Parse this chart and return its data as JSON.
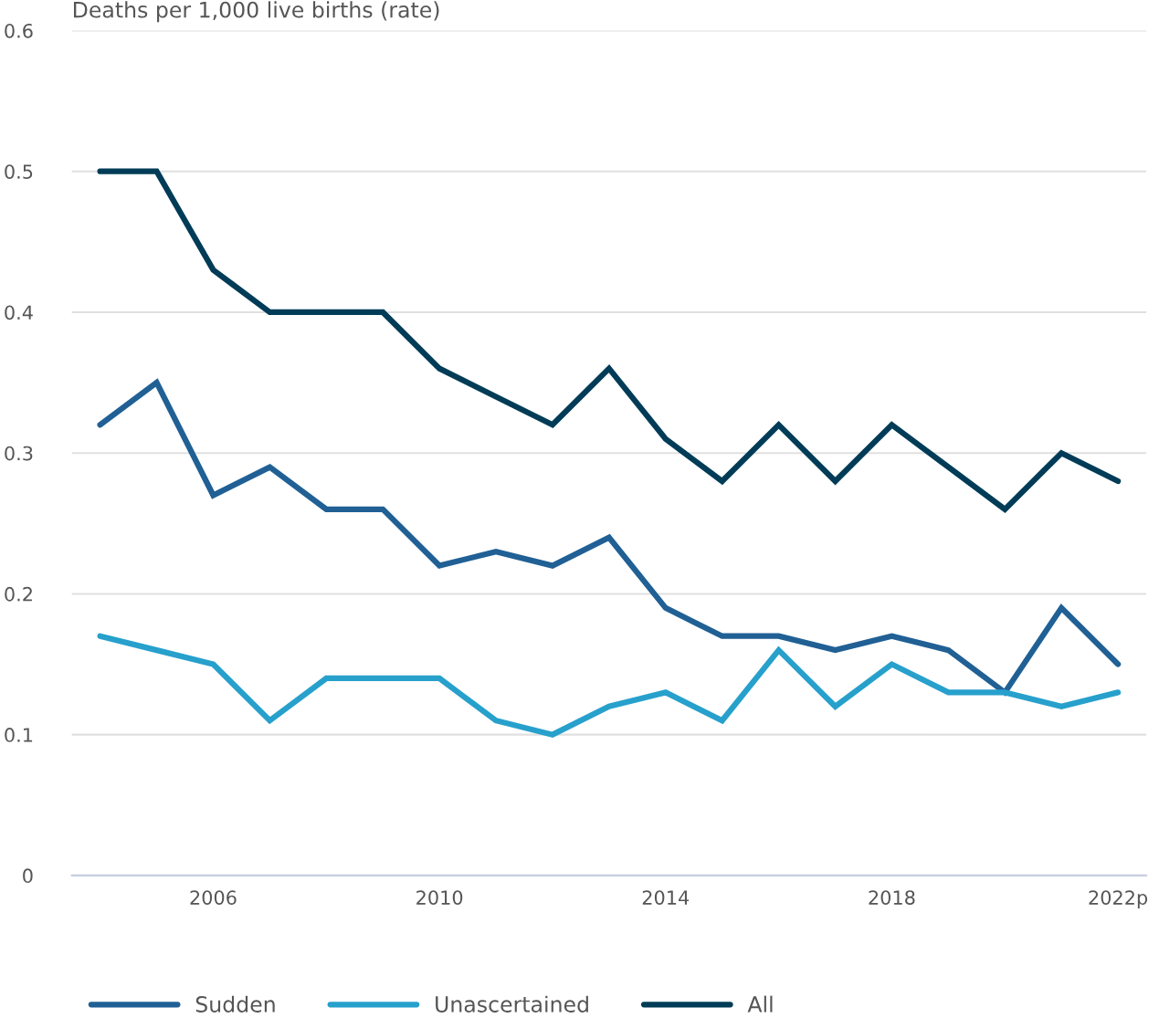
{
  "chart_data": {
    "type": "line",
    "ylabel": "Deaths per 1,000 live births (rate)",
    "categories": [
      null,
      null,
      "2006",
      null,
      null,
      null,
      "2010",
      null,
      null,
      null,
      "2014",
      null,
      null,
      null,
      "2018",
      null,
      null,
      null,
      "2022p"
    ],
    "series": [
      {
        "name": "Sudden",
        "color": "#206095",
        "values": [
          0.32,
          0.35,
          0.27,
          0.29,
          0.26,
          0.26,
          0.22,
          0.23,
          0.22,
          0.24,
          0.19,
          0.17,
          0.17,
          0.16,
          0.17,
          0.16,
          0.13,
          0.19,
          0.15
        ]
      },
      {
        "name": "Unascertained",
        "color": "#27a0cc",
        "values": [
          0.17,
          0.16,
          0.15,
          0.11,
          0.14,
          0.14,
          0.14,
          0.11,
          0.1,
          0.12,
          0.13,
          0.11,
          0.16,
          0.12,
          0.15,
          0.13,
          0.13,
          0.12,
          0.13
        ]
      },
      {
        "name": "All",
        "color": "#003c57",
        "values": [
          0.5,
          0.5,
          0.43,
          0.4,
          0.4,
          0.4,
          0.36,
          0.34,
          0.32,
          0.36,
          0.31,
          0.28,
          0.32,
          0.28,
          0.32,
          0.29,
          0.26,
          0.3,
          0.28
        ]
      }
    ],
    "ylim": [
      0,
      0.6
    ],
    "yticks": [
      {
        "value": 0,
        "label": "0"
      },
      0.1,
      0.2,
      0.3,
      0.4,
      0.5,
      0.6
    ],
    "grid": "y",
    "legend": "bottom",
    "marker": "none",
    "line_style": "solid"
  }
}
